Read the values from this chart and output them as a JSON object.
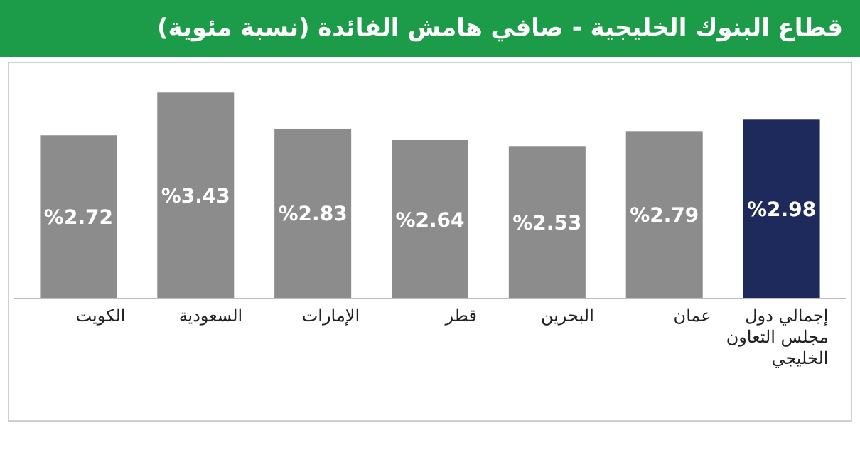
{
  "chart_data": {
    "type": "bar",
    "title": "قطاع البنوك الخليجية - صافي هامش الفائدة (نسبة مئوية)",
    "categories": [
      "الكويت",
      "السعودية",
      "الإمارات",
      "قطر",
      "البحرين",
      "عمان",
      "إجمالي دول مجلس التعاون الخليجي"
    ],
    "values": [
      2.72,
      3.43,
      2.83,
      2.64,
      2.53,
      2.79,
      2.98
    ],
    "colors": [
      "#8c8c8c",
      "#8c8c8c",
      "#8c8c8c",
      "#8c8c8c",
      "#8c8c8c",
      "#8c8c8c",
      "#1f2a5c"
    ],
    "value_labels": [
      "%2.72",
      "%3.43",
      "%2.83",
      "%2.64",
      "%2.53",
      "%2.79",
      "%2.98"
    ],
    "data_labels": false
  }
}
